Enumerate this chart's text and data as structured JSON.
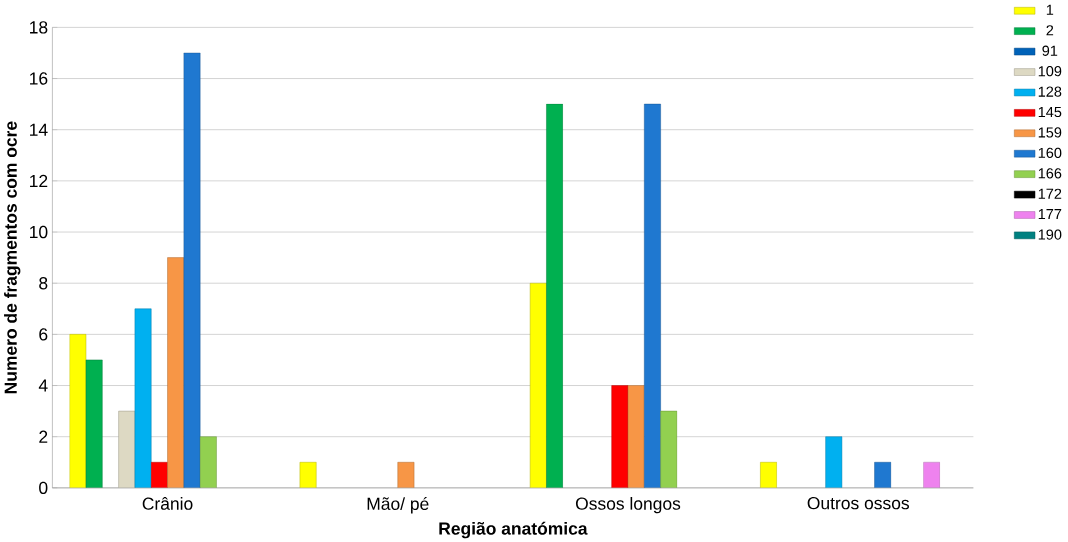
{
  "chart_data": {
    "type": "bar",
    "xlabel": "Região anatómica",
    "ylabel": "Numero de fragmentos com ocre",
    "categories": [
      "Crânio",
      "Mão/ pé",
      "Ossos longos",
      "Outros ossos"
    ],
    "series": [
      {
        "name": "1",
        "color": "#ffff00",
        "values": [
          6,
          1,
          8,
          1
        ]
      },
      {
        "name": "2",
        "color": "#00b050",
        "values": [
          5,
          null,
          15,
          null
        ]
      },
      {
        "name": "91",
        "color": "#0062b8",
        "values": [
          null,
          null,
          null,
          null
        ]
      },
      {
        "name": "109",
        "color": "#ddd9c3",
        "values": [
          3,
          null,
          null,
          null
        ]
      },
      {
        "name": "128",
        "color": "#00b0f0",
        "values": [
          7,
          null,
          null,
          2
        ]
      },
      {
        "name": "145",
        "color": "#ff0000",
        "values": [
          1,
          null,
          4,
          null
        ]
      },
      {
        "name": "159",
        "color": "#f79646",
        "values": [
          9,
          1,
          4,
          null
        ]
      },
      {
        "name": "160",
        "color": "#1f78d0",
        "values": [
          17,
          null,
          15,
          1
        ]
      },
      {
        "name": "166",
        "color": "#92d050",
        "values": [
          2,
          null,
          3,
          null
        ]
      },
      {
        "name": "172",
        "color": "#000000",
        "values": [
          null,
          null,
          null,
          null
        ]
      },
      {
        "name": "177",
        "color": "#ee82ee",
        "values": [
          null,
          null,
          null,
          1
        ]
      },
      {
        "name": "190",
        "color": "#008080",
        "values": [
          null,
          null,
          null,
          null
        ]
      }
    ],
    "ylim": [
      0,
      18
    ],
    "yticks": [
      0,
      2,
      4,
      6,
      8,
      10,
      12,
      14,
      16,
      18
    ],
    "grid": "y",
    "legend": "right"
  }
}
